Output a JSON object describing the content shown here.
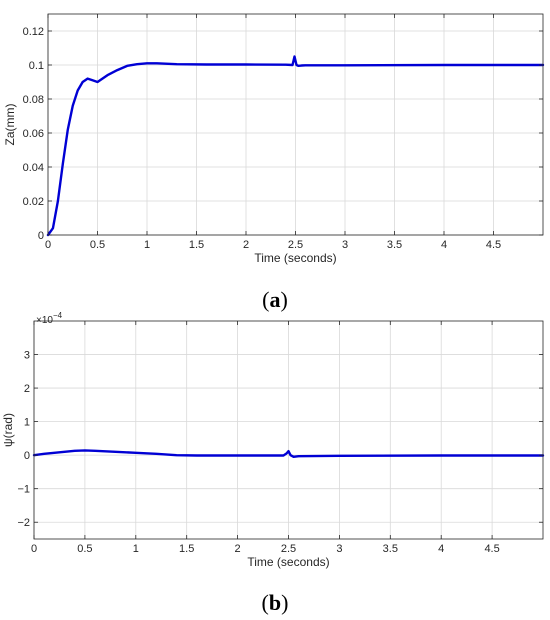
{
  "chart_data": [
    {
      "type": "line",
      "panel_label": "a",
      "xlabel": "Time (seconds)",
      "ylabel": "Za(mm)",
      "xlim": [
        0,
        5
      ],
      "ylim": [
        0,
        0.13
      ],
      "xticks": [
        0,
        0.5,
        1,
        1.5,
        2,
        2.5,
        3,
        3.5,
        4,
        4.5
      ],
      "xtick_labels": [
        "0",
        "0.5",
        "1",
        "1.5",
        "2",
        "2.5",
        "3",
        "3.5",
        "4",
        "4.5"
      ],
      "yticks": [
        0,
        0.02,
        0.04,
        0.06,
        0.08,
        0.1,
        0.12
      ],
      "ytick_labels": [
        "0",
        "0.02",
        "0.04",
        "0.06",
        "0.08",
        "0.1",
        "0.12"
      ],
      "grid": true,
      "color": "#0000d4",
      "series": [
        {
          "x": [
            0,
            0.05,
            0.1,
            0.15,
            0.2,
            0.25,
            0.3,
            0.35,
            0.4,
            0.45,
            0.5,
            0.55,
            0.6,
            0.7,
            0.8,
            0.9,
            1.0,
            1.1,
            1.3,
            1.6,
            2.0,
            2.4,
            2.47,
            2.49,
            2.51,
            2.53,
            2.56,
            2.6,
            3.0,
            4.0,
            5.0
          ],
          "y": [
            0,
            0.004,
            0.02,
            0.042,
            0.062,
            0.076,
            0.085,
            0.09,
            0.092,
            0.091,
            0.09,
            0.092,
            0.094,
            0.097,
            0.0995,
            0.1005,
            0.101,
            0.101,
            0.1005,
            0.1003,
            0.1003,
            0.1002,
            0.1,
            0.105,
            0.1,
            0.0995,
            0.0997,
            0.0998,
            0.0998,
            0.1,
            0.1
          ]
        }
      ]
    },
    {
      "type": "line",
      "panel_label": "b",
      "xlabel": "Time (seconds)",
      "ylabel": "ψ(rad)",
      "exponent_label": "×10",
      "exponent_power": "−4",
      "xlim": [
        0,
        5
      ],
      "ylim": [
        -2.5,
        4
      ],
      "xticks": [
        0,
        0.5,
        1,
        1.5,
        2,
        2.5,
        3,
        3.5,
        4,
        4.5
      ],
      "xtick_labels": [
        "0",
        "0.5",
        "1",
        "1.5",
        "2",
        "2.5",
        "3",
        "3.5",
        "4",
        "4.5"
      ],
      "yticks": [
        -2,
        -1,
        0,
        1,
        2,
        3
      ],
      "ytick_labels": [
        "−2",
        "−1",
        "0",
        "1",
        "2",
        "3"
      ],
      "grid": true,
      "color": "#0000d4",
      "series": [
        {
          "x": [
            0,
            0.1,
            0.2,
            0.3,
            0.4,
            0.5,
            0.6,
            0.8,
            1.0,
            1.2,
            1.4,
            1.6,
            2.0,
            2.45,
            2.48,
            2.5,
            2.52,
            2.55,
            2.6,
            3.0,
            4.0,
            5.0
          ],
          "y": [
            0,
            0.04,
            0.07,
            0.1,
            0.13,
            0.14,
            0.13,
            0.1,
            0.07,
            0.04,
            0.0,
            -0.01,
            -0.01,
            -0.01,
            0.05,
            0.12,
            0.0,
            -0.05,
            -0.03,
            -0.02,
            -0.01,
            -0.01
          ]
        }
      ]
    }
  ]
}
